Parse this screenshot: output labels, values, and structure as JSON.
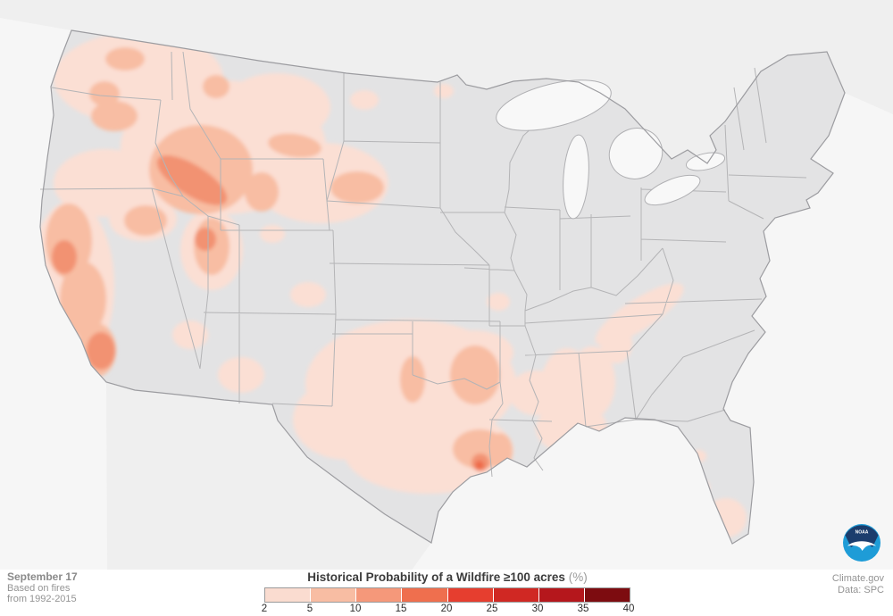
{
  "footer": {
    "date_label": "September 17",
    "source_line1": "Based on fires",
    "source_line2": "from 1992-2015",
    "credit_site": "Climate.gov",
    "credit_data": "Data: SPC"
  },
  "legend": {
    "title_main": "Historical Probability of a Wildfire ≥100 acres",
    "title_unit": "(%)",
    "ticks": [
      "2",
      "5",
      "10",
      "15",
      "20",
      "25",
      "30",
      "35",
      "40"
    ],
    "colors": [
      "#fadcd0",
      "#f8bda3",
      "#f5987a",
      "#ef6f4e",
      "#e63e2f",
      "#d02823",
      "#b5171c",
      "#7d0c10"
    ]
  },
  "map": {
    "region": "Contiguous United States",
    "background_color": "#f6f6f6",
    "state_fill": "#e3e3e4",
    "state_border_color": "#b4b4b6",
    "national_outline_color": "#9c9ca0",
    "neighbor_land_color": "#efefef",
    "water_color": "#f8f8f8",
    "probability_levels": [
      {
        "range": "2-5",
        "color": "#fbdfd4"
      },
      {
        "range": "5-10",
        "color": "#f8bda3"
      },
      {
        "range": "10-15",
        "color": "#f29272"
      },
      {
        "range": "15-20",
        "color": "#ee6a4a"
      }
    ],
    "hotspot_regions": [
      "Eastern Washington / Oregon",
      "Northern California coast ranges",
      "Southern California",
      "Central Idaho (highest, 10-20%)",
      "Montana / Wyoming",
      "Western South Dakota",
      "Central Utah",
      "Northern Nevada",
      "Arizona",
      "Oklahoma / North Texas",
      "Texas-Louisiana Gulf coast (10-20%)",
      "Mississippi / Alabama",
      "Southern Appalachians (Tennessee)",
      "Missouri (small)",
      "North Dakota (small)",
      "South Florida"
    ]
  },
  "logo": {
    "agency": "NOAA",
    "navy": "#1b3d6d",
    "blue": "#1e9cd7"
  }
}
